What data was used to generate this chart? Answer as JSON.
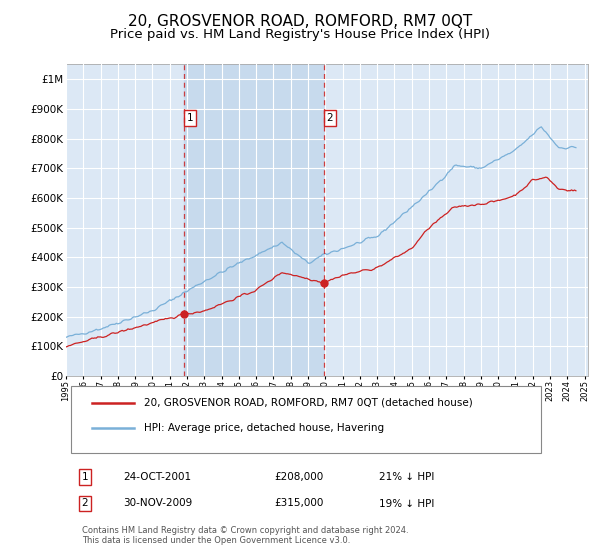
{
  "title": "20, GROSVENOR ROAD, ROMFORD, RM7 0QT",
  "subtitle": "Price paid vs. HM Land Registry's House Price Index (HPI)",
  "title_fontsize": 11,
  "subtitle_fontsize": 9.5,
  "background_color": "#ffffff",
  "plot_bg_color": "#dce8f5",
  "shade_color": "#c8dcf0",
  "grid_color": "#ffffff",
  "red_color": "#cc2222",
  "blue_color": "#7ab0d8",
  "red_line_label": "20, GROSVENOR ROAD, ROMFORD, RM7 0QT (detached house)",
  "blue_line_label": "HPI: Average price, detached house, Havering",
  "ylim": [
    0,
    1050000
  ],
  "yticks": [
    0,
    100000,
    200000,
    300000,
    400000,
    500000,
    600000,
    700000,
    800000,
    900000,
    1000000
  ],
  "ytick_labels": [
    "£0",
    "£100K",
    "£200K",
    "£300K",
    "£400K",
    "£500K",
    "£600K",
    "£700K",
    "£800K",
    "£900K",
    "£1M"
  ],
  "xlim_start": 1995.0,
  "xlim_end": 2025.2,
  "event1_x": 2001.82,
  "event2_x": 2009.92,
  "footer": "Contains HM Land Registry data © Crown copyright and database right 2024.\nThis data is licensed under the Open Government Licence v3.0."
}
